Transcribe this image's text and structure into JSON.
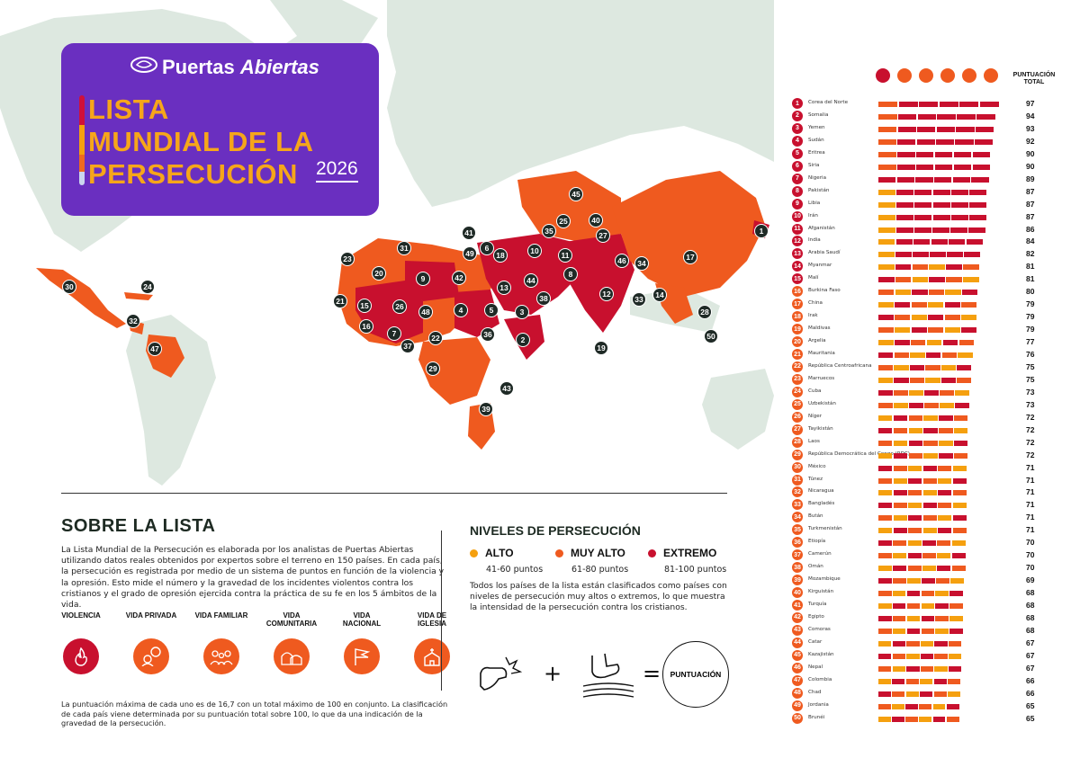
{
  "brand": {
    "name_plain": "Puertas ",
    "name_italic": "Abiertas"
  },
  "title": {
    "line1": "LISTA",
    "line2": "MUNDIAL DE LA",
    "line3": "PERSECUCIÓN",
    "year": "2026"
  },
  "colors": {
    "high": "#f5a00f",
    "very_high": "#ef5a1f",
    "extreme": "#c8102e",
    "land": "#dde8e0",
    "ocean": "#ffffff",
    "brand": "#6a2fc0",
    "title_yellow": "#f6a61a",
    "marker": "#1f2a26"
  },
  "map_markers": [
    "1",
    "2",
    "3",
    "4",
    "5",
    "6",
    "7",
    "8",
    "9",
    "10",
    "11",
    "12",
    "13",
    "14",
    "15",
    "16",
    "17",
    "18",
    "19",
    "20",
    "21",
    "22",
    "23",
    "24",
    "25",
    "26",
    "27",
    "28",
    "29",
    "30",
    "31",
    "32",
    "33",
    "34",
    "35",
    "36",
    "37",
    "38",
    "39",
    "40",
    "41",
    "42",
    "43",
    "44",
    "45",
    "46",
    "47",
    "48",
    "49",
    "50"
  ],
  "about": {
    "title": "SOBRE LA LISTA",
    "text": "La Lista Mundial de la Persecución es elaborada por los analistas de Puertas Abiertas utilizando datos reales obtenidos por expertos sobre el terreno en 150 países. En cada país, la persecución es registrada por medio de un sistema de puntos en función de la violencia y la opresión. Esto mide el número y la gravedad de los incidentes violentos contra los cristianos y el grado de opresión ejercida contra la práctica de su fe en los 5 ámbitos de la vida.",
    "areas": [
      {
        "label": "VIOLENCIA",
        "icon": "fire-icon",
        "color": "#c8102e"
      },
      {
        "label": "VIDA PRIVADA",
        "icon": "person-speech-icon",
        "color": "#ef5a1f"
      },
      {
        "label": "VIDA FAMILIAR",
        "icon": "family-icon",
        "color": "#ef5a1f"
      },
      {
        "label": "VIDA COMUNITARIA",
        "icon": "houses-icon",
        "color": "#ef5a1f"
      },
      {
        "label": "VIDA NACIONAL",
        "icon": "flag-icon",
        "color": "#ef5a1f"
      },
      {
        "label": "VIDA DE IGLESIA",
        "icon": "church-icon",
        "color": "#ef5a1f"
      }
    ],
    "footnote": "La puntuación máxima de cada uno es de 16,7 con un total máximo de 100 en conjunto. La clasificación de cada país viene determinada por su puntuación total sobre 100, lo que da una indicación de la gravedad de la persecución."
  },
  "levels": {
    "title": "NIVELES DE PERSECUCIÓN",
    "items": [
      {
        "name": "ALTO",
        "range": "41-60 puntos",
        "color": "#f5a00f"
      },
      {
        "name": "MUY ALTO",
        "range": "61-80 puntos",
        "color": "#ef5a1f"
      },
      {
        "name": "EXTREMO",
        "range": "81-100 puntos",
        "color": "#c8102e"
      }
    ],
    "text": "Todos los países de la lista están clasificados como países con niveles de persecución muy altos o extremos, lo que muestra la intensidad de la persecución contra los cristianos.",
    "formula": {
      "plus": "+",
      "equals": "=",
      "result": "PUNTUACIÓN"
    }
  },
  "ranking": {
    "header_icons": [
      "fire-icon",
      "person-speech-icon",
      "family-icon",
      "houses-icon",
      "flag-icon",
      "church-icon"
    ],
    "total_label": "PUNTUACIÓN TOTAL",
    "countries": [
      {
        "rank": "1",
        "name": "Corea del Norte",
        "score": 97
      },
      {
        "rank": "2",
        "name": "Somalia",
        "score": 94
      },
      {
        "rank": "3",
        "name": "Yemen",
        "score": 93
      },
      {
        "rank": "4",
        "name": "Sudán",
        "score": 92
      },
      {
        "rank": "5",
        "name": "Eritrea",
        "score": 90
      },
      {
        "rank": "6",
        "name": "Siria",
        "score": 90
      },
      {
        "rank": "7",
        "name": "Nigeria",
        "score": 89
      },
      {
        "rank": "8",
        "name": "Pakistán",
        "score": 87
      },
      {
        "rank": "9",
        "name": "Libia",
        "score": 87
      },
      {
        "rank": "10",
        "name": "Irán",
        "score": 87
      },
      {
        "rank": "11",
        "name": "Afganistán",
        "score": 86
      },
      {
        "rank": "12",
        "name": "India",
        "score": 84
      },
      {
        "rank": "13",
        "name": "Arabia Saudí",
        "score": 82
      },
      {
        "rank": "14",
        "name": "Myanmar",
        "score": 81
      },
      {
        "rank": "15",
        "name": "Malí",
        "score": 81
      },
      {
        "rank": "16",
        "name": "Burkina Faso",
        "score": 80
      },
      {
        "rank": "17",
        "name": "China",
        "score": 79
      },
      {
        "rank": "18",
        "name": "Irak",
        "score": 79
      },
      {
        "rank": "19",
        "name": "Maldivas",
        "score": 79
      },
      {
        "rank": "20",
        "name": "Argelia",
        "score": 77
      },
      {
        "rank": "21",
        "name": "Mauritania",
        "score": 76
      },
      {
        "rank": "22",
        "name": "República Centroafricana",
        "score": 75
      },
      {
        "rank": "23",
        "name": "Marruecos",
        "score": 75
      },
      {
        "rank": "24",
        "name": "Cuba",
        "score": 73
      },
      {
        "rank": "25",
        "name": "Uzbekistán",
        "score": 73
      },
      {
        "rank": "26",
        "name": "Níger",
        "score": 72
      },
      {
        "rank": "27",
        "name": "Tayikistán",
        "score": 72
      },
      {
        "rank": "28",
        "name": "Laos",
        "score": 72
      },
      {
        "rank": "29",
        "name": "República Democrática del Congo (RDC)",
        "score": 72
      },
      {
        "rank": "30",
        "name": "México",
        "score": 71
      },
      {
        "rank": "31",
        "name": "Túnez",
        "score": 71
      },
      {
        "rank": "32",
        "name": "Nicaragua",
        "score": 71
      },
      {
        "rank": "33",
        "name": "Bangladés",
        "score": 71
      },
      {
        "rank": "34",
        "name": "Bután",
        "score": 71
      },
      {
        "rank": "35",
        "name": "Turkmenistán",
        "score": 71
      },
      {
        "rank": "36",
        "name": "Etiopía",
        "score": 70
      },
      {
        "rank": "37",
        "name": "Camerún",
        "score": 70
      },
      {
        "rank": "38",
        "name": "Omán",
        "score": 70
      },
      {
        "rank": "39",
        "name": "Mozambique",
        "score": 69
      },
      {
        "rank": "40",
        "name": "Kirguistán",
        "score": 68
      },
      {
        "rank": "41",
        "name": "Turquía",
        "score": 68
      },
      {
        "rank": "42",
        "name": "Egipto",
        "score": 68
      },
      {
        "rank": "43",
        "name": "Comoras",
        "score": 68
      },
      {
        "rank": "44",
        "name": "Catar",
        "score": 67
      },
      {
        "rank": "45",
        "name": "Kazajistán",
        "score": 67
      },
      {
        "rank": "46",
        "name": "Nepal",
        "score": 67
      },
      {
        "rank": "47",
        "name": "Colombia",
        "score": 66
      },
      {
        "rank": "48",
        "name": "Chad",
        "score": 66
      },
      {
        "rank": "49",
        "name": "Jordania",
        "score": 65
      },
      {
        "rank": "50",
        "name": "Brunéi",
        "score": 65
      }
    ]
  }
}
